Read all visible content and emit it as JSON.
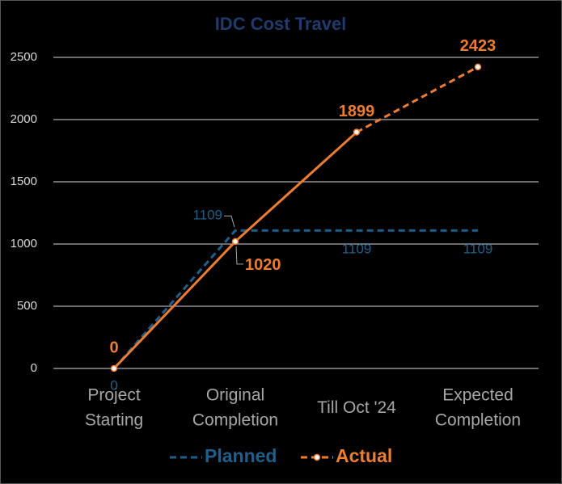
{
  "chart_data": {
    "type": "line",
    "title": "IDC Cost Travel",
    "categories": [
      [
        "Project",
        "Starting"
      ],
      [
        "Original",
        "Completion"
      ],
      [
        "Till Oct '24"
      ],
      [
        "Expected",
        "Completion"
      ]
    ],
    "series": [
      {
        "name": "Planned",
        "color": "#1f5f8b",
        "values": [
          0,
          1109,
          1109,
          1109
        ]
      },
      {
        "name": "Actual",
        "color": "#ed7d31",
        "values": [
          0,
          1020,
          1899,
          2423
        ]
      }
    ],
    "ylim": [
      0,
      2500
    ],
    "yticks": [
      0,
      500,
      1000,
      1500,
      2000,
      2500
    ],
    "grid": true,
    "legend": "bottom"
  }
}
